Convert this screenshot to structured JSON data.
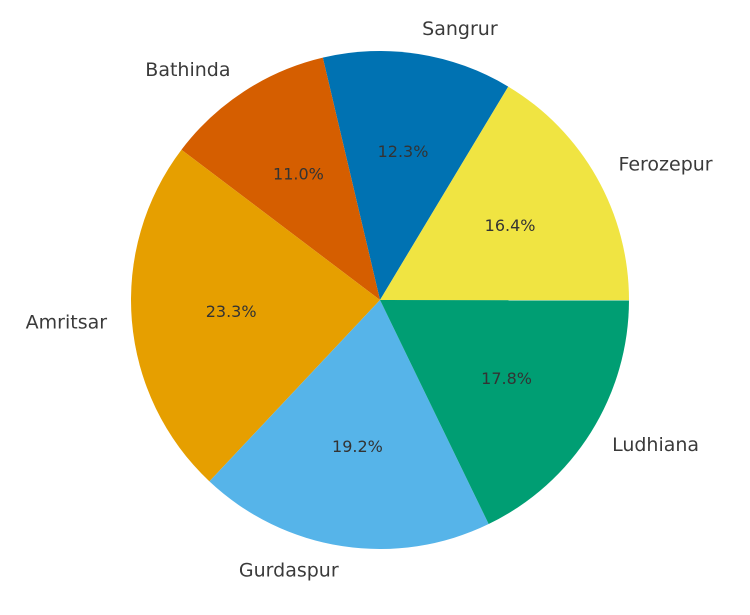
{
  "chart_data": {
    "type": "pie",
    "categories": [
      "Sangrur",
      "Bathinda",
      "Amritsar",
      "Gurdaspur",
      "Ludhiana",
      "Ferozepur"
    ],
    "values": [
      12.3,
      11.0,
      23.3,
      19.2,
      17.8,
      16.4
    ],
    "value_labels": [
      "12.3%",
      "11.0%",
      "23.3%",
      "19.2%",
      "17.8%",
      "16.4%"
    ],
    "colors": [
      "#0072B2",
      "#D55E00",
      "#E69F00",
      "#56B4E9",
      "#009E73",
      "#F0E442"
    ],
    "start_angle_deg": 59,
    "direction": "counterclockwise",
    "title": "",
    "legend": "none"
  }
}
